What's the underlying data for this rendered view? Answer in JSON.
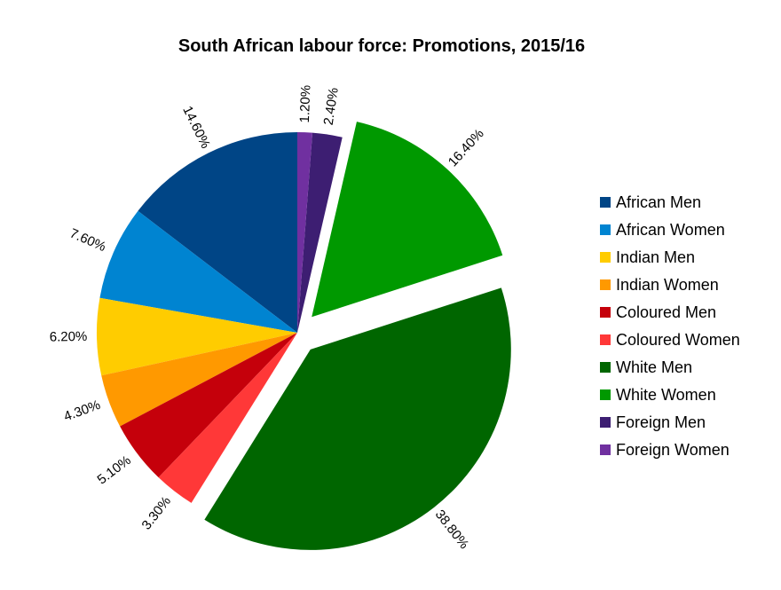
{
  "chart_data": {
    "type": "pie",
    "title": "South African labour force: Promotions, 2015/16",
    "legend_position": "right",
    "slices": [
      {
        "name": "African Men",
        "value": 14.6,
        "label": "14.60%",
        "color": "#004586",
        "exploded": false
      },
      {
        "name": "African Women",
        "value": 7.6,
        "label": "7.60%",
        "color": "#0084d1",
        "exploded": false
      },
      {
        "name": "Indian Men",
        "value": 6.2,
        "label": "6.20%",
        "color": "#ffcc00",
        "exploded": false
      },
      {
        "name": "Indian Women",
        "value": 4.3,
        "label": "4.30%",
        "color": "#ff9900",
        "exploded": false
      },
      {
        "name": "Coloured Men",
        "value": 5.1,
        "label": "5.10%",
        "color": "#c5000b",
        "exploded": false
      },
      {
        "name": "Coloured Women",
        "value": 3.3,
        "label": "3.30%",
        "color": "#ff3838",
        "exploded": false
      },
      {
        "name": "White Men",
        "value": 38.8,
        "label": "38.80%",
        "color": "#006600",
        "exploded": true
      },
      {
        "name": "White Women",
        "value": 16.4,
        "label": "16.40%",
        "color": "#009900",
        "exploded": true
      },
      {
        "name": "Foreign Men",
        "value": 2.4,
        "label": "2.40%",
        "color": "#3d1e72",
        "exploded": false
      },
      {
        "name": "Foreign Women",
        "value": 1.2,
        "label": "1.20%",
        "color": "#7030a0",
        "exploded": false
      }
    ]
  }
}
